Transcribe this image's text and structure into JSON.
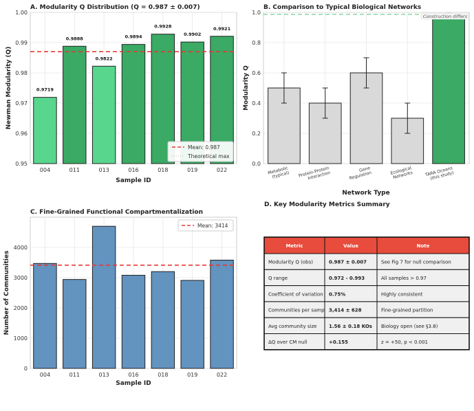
{
  "chart_data": [
    {
      "type": "bar",
      "title": "A. Modularity Q Distribution (Q = 0.987 ± 0.007)",
      "xlabel": "Sample ID",
      "ylabel": "Newman Modularity (Q)",
      "categories": [
        "004",
        "011",
        "013",
        "016",
        "018",
        "019",
        "022"
      ],
      "values": [
        0.9719,
        0.9888,
        0.9822,
        0.9894,
        0.9928,
        0.9902,
        0.9921
      ],
      "value_labels": [
        "0.9719",
        "0.9888",
        "0.9822",
        "0.9894",
        "0.9928",
        "0.9902",
        "0.9921"
      ],
      "ylim": [
        0.95,
        1.0
      ],
      "yticks": [
        "0.95",
        "0.96",
        "0.97",
        "0.98",
        "0.99",
        "1.00"
      ],
      "mean": 0.987,
      "theoretical_max": 1.0,
      "legend": [
        "Mean: 0.987",
        "Theoretical max"
      ],
      "legend_position": "lower-right",
      "grid": true,
      "colors": {
        "light_bar": "#58d68d",
        "dark_bar": "#3aaa64",
        "mean_line": "#e53935"
      }
    },
    {
      "type": "bar",
      "title": "B. Comparison to Typical Biological Networks",
      "xlabel": "Network Type",
      "ylabel": "Modularity Q",
      "categories": [
        [
          "Metabolic",
          "(typical)"
        ],
        [
          "Protein-Protein",
          "Interaction"
        ],
        [
          "Gene",
          "Regulation"
        ],
        [
          "Ecological",
          "Networks"
        ],
        [
          "TARA Oceans",
          "(this study)"
        ]
      ],
      "values": [
        0.5,
        0.4,
        0.6,
        0.3,
        0.987
      ],
      "errors": [
        0.1,
        0.1,
        0.1,
        0.1,
        0.007
      ],
      "ylim": [
        0.0,
        1.0
      ],
      "yticks": [
        "0.0",
        "0.2",
        "0.4",
        "0.6",
        "0.8",
        "1.0"
      ],
      "reference_line": 0.987,
      "annotation": "Construction differs",
      "grid": true,
      "colors": {
        "typical": "#d9d9d9",
        "this_study": "#3aaa64",
        "ref_line": "#8fd9a8"
      }
    },
    {
      "type": "bar",
      "title": "C. Fine-Grained Functional Compartmentalization",
      "xlabel": "Sample ID",
      "ylabel": "Number of Communities",
      "categories": [
        "004",
        "011",
        "013",
        "016",
        "018",
        "019",
        "022"
      ],
      "values": [
        3470,
        2940,
        4700,
        3080,
        3200,
        2910,
        3580
      ],
      "ylim": [
        0,
        5000
      ],
      "yticks": [
        "0",
        "1000",
        "2000",
        "3000",
        "4000"
      ],
      "mean": 3414,
      "legend": [
        "Mean: 3414"
      ],
      "legend_position": "top-right",
      "grid": true,
      "colors": {
        "bar": "#6393bf",
        "mean_line": "#e53935"
      }
    },
    {
      "type": "table",
      "title": "D. Key Modularity Metrics Summary",
      "columns": [
        "Metric",
        "Value",
        "Note"
      ],
      "rows": [
        [
          "Modularity Q (obs)",
          "0.987 ± 0.007",
          "See Fig 7 for null comparison"
        ],
        [
          "Q range",
          "0.972 - 0.993",
          "All samples > 0.97"
        ],
        [
          "Coefficient of variation",
          "0.75%",
          "Highly consistent"
        ],
        [
          "Communities per sample",
          "3,414 ± 628",
          "Fine-grained partition"
        ],
        [
          "Avg community size",
          "1.56 ± 0.18 KOs",
          "Biology open (see §3.8)"
        ],
        [
          "ΔQ over CM null",
          "+0.155",
          "z = +50, p < 0.001"
        ]
      ],
      "colors": {
        "header": "#e74c3c",
        "row": "#f0f0f0"
      }
    }
  ]
}
